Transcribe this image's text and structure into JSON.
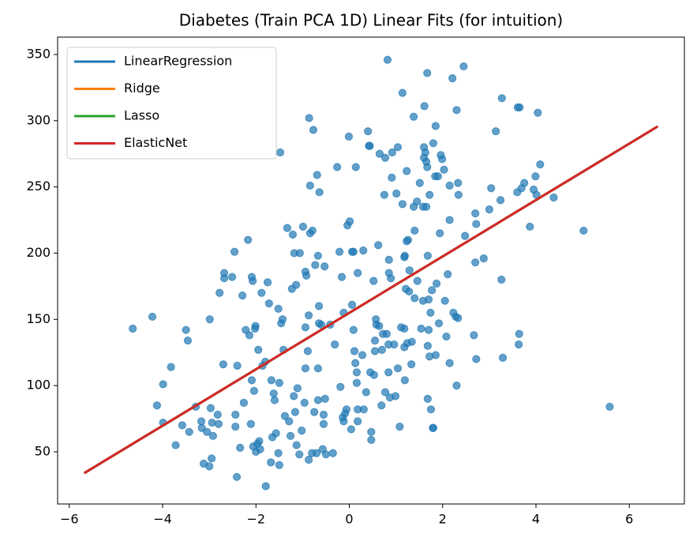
{
  "chart_data": {
    "type": "scatter",
    "title": "Diabetes (Train PCA 1D) Linear Fits (for intuition)",
    "xlim": [
      -6.25,
      7.18
    ],
    "ylim": [
      10.6,
      363.1
    ],
    "xticks": [
      {
        "value": -6,
        "label": "−6"
      },
      {
        "value": -4,
        "label": "−4"
      },
      {
        "value": -2,
        "label": "−2"
      },
      0,
      2,
      4,
      6
    ],
    "yticks": [
      50,
      100,
      150,
      200,
      250,
      300,
      350
    ],
    "legend": "upper left",
    "points": {
      "color": "#1f77b4",
      "x": [
        -4.64,
        -4.22,
        -4.12,
        -3.99,
        -3.99,
        -3.82,
        -3.72,
        -3.58,
        -3.5,
        -3.46,
        -3.43,
        -3.29,
        -3.17,
        -3.16,
        -3.12,
        -3,
        -2.99,
        -2.97,
        -2.94,
        -2.95,
        -2.92,
        -3.05,
        -2.82,
        -2.8,
        -2.78,
        -2.68,
        -2.68,
        -2.7,
        -2.51,
        -2.46,
        -2.44,
        -2.44,
        -2.41,
        -2.4,
        -2.34,
        -2.29,
        -2.26,
        -2.22,
        -2.17,
        -2.14,
        -2.11,
        -2.09,
        -2.07,
        -2.04,
        -2.02,
        -2.01,
        -1.95,
        -2.09,
        -2.06,
        -2,
        -1.97,
        -1.91,
        -1.93,
        -1.88,
        -1.86,
        -1.8,
        -1.79,
        -1.75,
        -1.72,
        -1.68,
        -1.67,
        -1.65,
        -1.62,
        -1.6,
        -1.57,
        -1.52,
        -1.52,
        -1.5,
        -1.5,
        -1.48,
        -1.46,
        -1.43,
        -1.41,
        -1.38,
        -1.33,
        -1.29,
        -1.26,
        -1.23,
        -1.21,
        -1.19,
        -1.18,
        -1.16,
        -1.14,
        -1.13,
        -1.11,
        -1.07,
        -1.06,
        -1.02,
        -0.99,
        -0.96,
        -0.94,
        -0.94,
        -0.94,
        -0.92,
        -0.89,
        -0.87,
        -0.87,
        -0.86,
        -0.84,
        -0.84,
        -0.8,
        -0.79,
        -0.77,
        -0.75,
        -0.73,
        -0.7,
        -0.69,
        -0.67,
        -0.67,
        -0.67,
        -0.65,
        -0.65,
        -0.64,
        -0.6,
        -0.57,
        -0.55,
        -0.55,
        -0.53,
        -0.52,
        -0.5,
        -0.41,
        -0.35,
        -0.31,
        -0.26,
        -0.21,
        -0.19,
        -0.16,
        -0.14,
        -0.12,
        -0.12,
        -0.09,
        -0.06,
        -0.04,
        -0.01,
        0.01,
        0.04,
        0.06,
        0.06,
        0.09,
        0.09,
        0.11,
        0.13,
        0.14,
        0.16,
        0.16,
        0.18,
        0.18,
        0.18,
        0.28,
        0.3,
        0.31,
        0.36,
        0.4,
        0.42,
        0.44,
        0.45,
        0.47,
        0.47,
        0.52,
        0.53,
        0.55,
        0.55,
        0.57,
        0.58,
        0.62,
        0.64,
        0.65,
        0.69,
        0.7,
        0.72,
        0.75,
        0.77,
        0.77,
        0.8,
        0.82,
        0.84,
        0.84,
        0.85,
        0.85,
        0.87,
        0.89,
        0.91,
        0.92,
        0.96,
        0.99,
        1.01,
        1.04,
        1.04,
        1.08,
        1.11,
        1.14,
        1.14,
        1.18,
        1.18,
        1.18,
        1.19,
        1.19,
        1.21,
        1.23,
        1.23,
        1.24,
        1.26,
        1.28,
        1.29,
        1.33,
        1.34,
        1.38,
        1.38,
        1.4,
        1.4,
        1.45,
        1.46,
        1.51,
        1.54,
        1.58,
        1.58,
        1.6,
        1.6,
        1.61,
        1.63,
        1.65,
        1.65,
        1.67,
        1.67,
        1.68,
        1.68,
        1.68,
        1.7,
        1.7,
        1.72,
        1.72,
        1.74,
        1.75,
        1.77,
        1.79,
        1.8,
        1.8,
        1.84,
        1.85,
        1.85,
        1.87,
        1.9,
        1.92,
        1.94,
        1.96,
        1.99,
        2.03,
        2.05,
        2.08,
        2.11,
        2.15,
        2.15,
        2.15,
        2.21,
        2.23,
        2.28,
        2.3,
        2.3,
        2.33,
        2.33,
        2.34,
        2.45,
        2.48,
        2.67,
        2.7,
        2.7,
        2.72,
        2.72,
        2.88,
        3,
        3.04,
        3.14,
        3.24,
        3.26,
        3.27,
        3.29,
        3.6,
        3.61,
        3.63,
        3.64,
        3.65,
        3.69,
        3.75,
        3.87,
        3.95,
        3.99,
        4.01,
        4.04,
        4.09,
        4.38,
        5.02,
        5.58
      ],
      "y": [
        143,
        152,
        85,
        101,
        72,
        114,
        55,
        70,
        142,
        134,
        65,
        84,
        73,
        68,
        41,
        39,
        150,
        83,
        72,
        45,
        62,
        65,
        78,
        71,
        170,
        185,
        181,
        116,
        182,
        201,
        69,
        78,
        31,
        115,
        53,
        168,
        87,
        142,
        210,
        138,
        71,
        182,
        179,
        96,
        143,
        145,
        127,
        104,
        54,
        50,
        56,
        52,
        58,
        170,
        115,
        118,
        24,
        178,
        162,
        42,
        104,
        61,
        94,
        89,
        64,
        158,
        49,
        102,
        40,
        276,
        147,
        150,
        127,
        77,
        219,
        73,
        62,
        173,
        214,
        92,
        200,
        80,
        176,
        55,
        98,
        48,
        200,
        66,
        220,
        87,
        113,
        144,
        186,
        183,
        126,
        153,
        44,
        302,
        251,
        215,
        49,
        217,
        293,
        80,
        191,
        49,
        259,
        198,
        89,
        113,
        160,
        147,
        246,
        146,
        52,
        78,
        71,
        190,
        90,
        48,
        146,
        49,
        131,
        265,
        201,
        99,
        182,
        76,
        73,
        155,
        79,
        82,
        221,
        288,
        224,
        67,
        161,
        201,
        201,
        142,
        126,
        117,
        265,
        110,
        102,
        82,
        185,
        73,
        123,
        202,
        82,
        95,
        292,
        281,
        281,
        110,
        65,
        59,
        179,
        108,
        126,
        134,
        150,
        146,
        206,
        145,
        275,
        85,
        127,
        139,
        244,
        272,
        95,
        139,
        346,
        110,
        131,
        185,
        195,
        91,
        181,
        257,
        276,
        131,
        92,
        245,
        113,
        280,
        69,
        144,
        237,
        321,
        197,
        143,
        129,
        104,
        198,
        173,
        262,
        209,
        132,
        210,
        171,
        187,
        116,
        133,
        235,
        303,
        166,
        217,
        239,
        179,
        253,
        143,
        164,
        235,
        280,
        272,
        311,
        276,
        269,
        235,
        265,
        336,
        90,
        130,
        198,
        142,
        165,
        244,
        122,
        155,
        82,
        172,
        68,
        68,
        283,
        258,
        123,
        296,
        177,
        258,
        147,
        215,
        274,
        271,
        263,
        164,
        137,
        184,
        251,
        225,
        117,
        332,
        155,
        152,
        308,
        100,
        151,
        253,
        244,
        341,
        213,
        138,
        230,
        193,
        222,
        120,
        196,
        233,
        249,
        292,
        240,
        180,
        317,
        121,
        246,
        310,
        131,
        139,
        310,
        249,
        253,
        220,
        248,
        258,
        244,
        306,
        267,
        242,
        217,
        84
      ]
    },
    "series": [
      {
        "name": "LinearRegression",
        "color": "#1f77b4",
        "x": [
          -5.68,
          6.61
        ],
        "y": [
          33.9,
          295.7
        ]
      },
      {
        "name": "Ridge",
        "color": "#ff7f0e",
        "x": [
          -5.68,
          6.61
        ],
        "y": [
          33.9,
          295.7
        ]
      },
      {
        "name": "Lasso",
        "color": "#2ca02c",
        "x": [
          -5.68,
          6.61
        ],
        "y": [
          33.9,
          295.7
        ]
      },
      {
        "name": "ElasticNet",
        "color": "#d62728",
        "x": [
          -5.68,
          6.61
        ],
        "y": [
          33.9,
          295.7
        ]
      }
    ]
  }
}
